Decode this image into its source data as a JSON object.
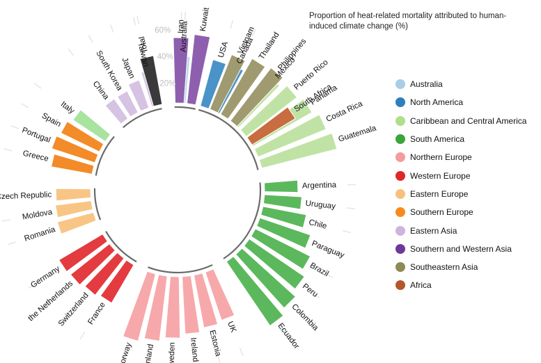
{
  "chart_data": {
    "type": "bar",
    "layout": "radial",
    "title": "Proportion of heat-related mortality attributed to human-induced climate change (%)",
    "ylim": [
      0,
      60
    ],
    "ticks": [
      "20%",
      "40%",
      "60%"
    ],
    "tick_values": [
      20,
      40,
      60
    ],
    "groups": [
      {
        "name": "Australia",
        "color": "#bcd9ea",
        "categories": [
          "Australia"
        ],
        "values": [
          35
        ]
      },
      {
        "name": "North America",
        "color": "#4a93c8",
        "categories": [
          "USA",
          "Canada"
        ],
        "values": [
          36,
          37
        ]
      },
      {
        "name": "Caribbean and Central America",
        "color": "#c0e3a5",
        "categories": [
          "Mexico",
          "Puerto Rico",
          "Panama",
          "Costa Rica",
          "Guatemala"
        ],
        "values": [
          44,
          48,
          51,
          55,
          58
        ]
      },
      {
        "name": "South America",
        "color": "#5cb85c",
        "categories": [
          "Argentina",
          "Uruguay",
          "Chile",
          "Paraguay",
          "Brazil",
          "Peru",
          "Colombia",
          "Ecuador"
        ],
        "values": [
          25,
          28,
          33,
          40,
          46,
          50,
          54,
          58
        ]
      },
      {
        "name": "Northern Europe",
        "color": "#f7a8ab",
        "categories": [
          "UK",
          "Estonia",
          "Ireland",
          "Sweden",
          "Finland",
          "Norway"
        ],
        "values": [
          38,
          40,
          43,
          46,
          49,
          52
        ]
      },
      {
        "name": "Western Europe",
        "color": "#e33b3f",
        "categories": [
          "France",
          "Switzerland",
          "the Netherlands",
          "Germany"
        ],
        "values": [
          33,
          35,
          37,
          38
        ]
      },
      {
        "name": "Eastern Europe",
        "color": "#f8c585",
        "categories": [
          "Romania",
          "Moldova",
          "Czech Republic"
        ],
        "values": [
          28,
          27,
          26
        ]
      },
      {
        "name": "Southern Europe",
        "color": "#f28b28",
        "categories": [
          "Greece",
          "Portugal",
          "Spain",
          "Italy"
        ],
        "values": [
          31,
          34,
          32,
          29
        ]
      },
      {
        "name": "Eastern Asia",
        "color": "#d6c2e3",
        "categories": [
          "China",
          "South Korea",
          "Japan",
          "Taiwan"
        ],
        "values": [
          18,
          18,
          22,
          27
        ]
      },
      {
        "name": "Southern and Western Asia",
        "color": "#8e5fae",
        "categories": [
          "Iran",
          "Kuwait"
        ],
        "values": [
          49,
          52
        ]
      },
      {
        "name": "Southeastern Asia",
        "color": "#a09a70",
        "categories": [
          "Vietnam",
          "Thailand",
          "Philippines"
        ],
        "values": [
          44,
          48,
          50
        ]
      },
      {
        "name": "Africa",
        "color": "#c76d3f",
        "categories": [
          "South Africa"
        ],
        "values": [
          38
        ]
      },
      {
        "name": "Total",
        "color": "#3a3a3a",
        "categories": [
          "Total"
        ],
        "values": [
          37
        ]
      }
    ],
    "highlight": {
      "category": "Italy",
      "color": "#a8e3a0"
    },
    "legend": {
      "placement": "right"
    }
  },
  "legend_items": [
    {
      "label": "Australia",
      "color": "#a9cde6"
    },
    {
      "label": "North America",
      "color": "#2e7fbd"
    },
    {
      "label": "Caribbean and Central America",
      "color": "#b1de89"
    },
    {
      "label": "South America",
      "color": "#3aa63a"
    },
    {
      "label": "Northern Europe",
      "color": "#f59b9c"
    },
    {
      "label": "Western Europe",
      "color": "#e0262b"
    },
    {
      "label": "Eastern Europe",
      "color": "#f9c07c"
    },
    {
      "label": "Southern Europe",
      "color": "#f88a1d"
    },
    {
      "label": "Eastern Asia",
      "color": "#cdb4dc"
    },
    {
      "label": "Southern and Western Asia",
      "color": "#6b3a98"
    },
    {
      "label": "Southeastern Asia",
      "color": "#8e8a58"
    },
    {
      "label": "Africa",
      "color": "#b5572c"
    }
  ]
}
